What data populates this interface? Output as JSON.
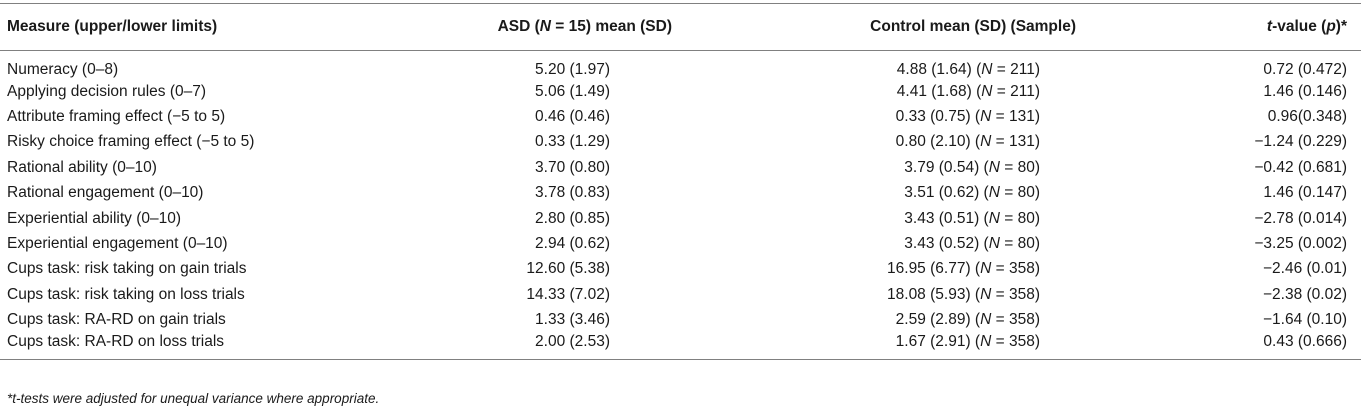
{
  "table": {
    "headers": {
      "measure": "Measure (upper/lower limits)",
      "asd_prefix": "ASD (",
      "asd_n": "N",
      "asd_suffix": " = 15) mean (SD)",
      "control": "Control mean (SD) (Sample)",
      "t_t": "t",
      "t_mid": "-value (",
      "t_p": "p",
      "t_suffix": ")*"
    },
    "rows": [
      {
        "measure": "Numeracy (0–8)",
        "asd": "5.20 (1.97)",
        "control_val": "4.88 (1.64) (",
        "control_n": "211",
        "t": "0.72 (0.472)"
      },
      {
        "measure": "Applying decision rules (0–7)",
        "asd": "5.06 (1.49)",
        "control_val": "4.41 (1.68) (",
        "control_n": "211",
        "t": "1.46 (0.146)"
      },
      {
        "measure": "Attribute framing effect (−5 to 5)",
        "asd": "0.46 (0.46)",
        "control_val": "0.33 (0.75) (",
        "control_n": "131",
        "t": "0.96(0.348)"
      },
      {
        "measure": "Risky choice framing effect (−5 to 5)",
        "asd": "0.33 (1.29)",
        "control_val": "0.80 (2.10) (",
        "control_n": "131",
        "t": "−1.24 (0.229)"
      },
      {
        "measure": "Rational ability (0–10)",
        "asd": "3.70 (0.80)",
        "control_val": "3.79 (0.54) (",
        "control_n": "80",
        "t": "−0.42 (0.681)"
      },
      {
        "measure": "Rational engagement (0–10)",
        "asd": "3.78 (0.83)",
        "control_val": "3.51 (0.62) (",
        "control_n": "80",
        "t": "1.46 (0.147)"
      },
      {
        "measure": "Experiential ability (0–10)",
        "asd": "2.80 (0.85)",
        "control_val": "3.43 (0.51) (",
        "control_n": "80",
        "t": "−2.78 (0.014)"
      },
      {
        "measure": "Experiential engagement (0–10)",
        "asd": "2.94 (0.62)",
        "control_val": "3.43 (0.52) (",
        "control_n": "80",
        "t": "−3.25 (0.002)"
      },
      {
        "measure": "Cups task: risk taking on gain trials",
        "asd": "12.60 (5.38)",
        "control_val": "16.95 (6.77) (",
        "control_n": "358",
        "t": "−2.46 (0.01)"
      },
      {
        "measure": "Cups task: risk taking on loss trials",
        "asd": "14.33 (7.02)",
        "control_val": "18.08 (5.93) (",
        "control_n": "358",
        "t": "−2.38 (0.02)"
      },
      {
        "measure": "Cups task: RA-RD on gain trials",
        "asd": "1.33 (3.46)",
        "control_val": "2.59 (2.89) (",
        "control_n": "358",
        "t": "−1.64 (0.10)"
      },
      {
        "measure": "Cups task: RA-RD on loss trials",
        "asd": "2.00 (2.53)",
        "control_val": "1.67 (2.91) (",
        "control_n": "358",
        "t": "0.43 (0.666)"
      }
    ],
    "n_letter": "N",
    "n_eq": " = ",
    "n_close": ")"
  },
  "footnote": "*t-tests were adjusted for unequal variance where appropriate."
}
